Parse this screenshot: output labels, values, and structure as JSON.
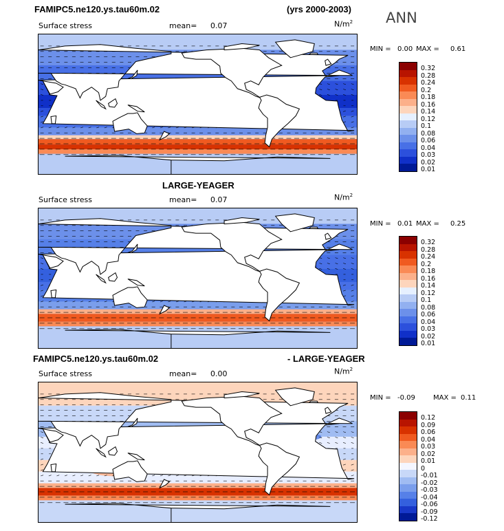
{
  "header": {
    "left_title": "FAMIPC5.ne120.ys.tau60m.02",
    "right_title": "(yrs 2000-2003)",
    "season": "ANN"
  },
  "panels": [
    {
      "id": "p1",
      "title": "",
      "variable": "Surface stress",
      "mean_label": "mean=",
      "mean_value": "0.07",
      "units": "N/m",
      "units_sup": "2",
      "min_label": "MIN =",
      "min_value": "0.00",
      "max_label": "MAX =",
      "max_value": "0.61",
      "scale": "abs"
    },
    {
      "id": "p2",
      "title": "LARGE-YEAGER",
      "variable": "Surface stress",
      "mean_label": "mean=",
      "mean_value": "0.07",
      "units": "N/m",
      "units_sup": "2",
      "min_label": "MIN =",
      "min_value": "0.01",
      "max_label": "MAX =",
      "max_value": "0.25",
      "scale": "abs"
    },
    {
      "id": "p3",
      "title_left": "FAMIPC5.ne120.ys.tau60m.02",
      "title_right": "- LARGE-YEAGER",
      "variable": "Surface stress",
      "mean_label": "mean=",
      "mean_value": "0.00",
      "units": "N/m",
      "units_sup": "2",
      "min_label": "MIN =",
      "min_value": "-0.09",
      "max_label": "MAX =",
      "max_value": "0.11",
      "scale": "diff"
    }
  ],
  "chart_data": [
    {
      "type": "heatmap",
      "title": "FAMIPC5.ne120.ys.tau60m.02",
      "subtitle": "Surface stress",
      "units": "N/m2",
      "mean": 0.07,
      "min": 0.0,
      "max": 0.61,
      "colorbar_levels": [
        "0.32",
        "0.28",
        "0.24",
        "0.2",
        "0.18",
        "0.16",
        "0.14",
        "0.12",
        "0.1",
        "0.08",
        "0.06",
        "0.04",
        "0.03",
        "0.02",
        "0.01"
      ],
      "colorbar_colors": [
        "#8b0000",
        "#b81400",
        "#d83200",
        "#f05a20",
        "#fa8a55",
        "#fcb08a",
        "#fdd5bc",
        "#e6f0ff",
        "#b8ccf5",
        "#92b0f0",
        "#6c90ea",
        "#4870e6",
        "#2c50dc",
        "#1030c8",
        "#001a96"
      ]
    },
    {
      "type": "heatmap",
      "title": "LARGE-YEAGER",
      "subtitle": "Surface stress",
      "units": "N/m2",
      "mean": 0.07,
      "min": 0.01,
      "max": 0.25,
      "colorbar_levels": [
        "0.32",
        "0.28",
        "0.24",
        "0.2",
        "0.18",
        "0.16",
        "0.14",
        "0.12",
        "0.1",
        "0.08",
        "0.06",
        "0.04",
        "0.03",
        "0.02",
        "0.01"
      ],
      "colorbar_colors": [
        "#8b0000",
        "#b81400",
        "#d83200",
        "#f05a20",
        "#fa8a55",
        "#fcb08a",
        "#fdd5bc",
        "#e6f0ff",
        "#b8ccf5",
        "#92b0f0",
        "#6c90ea",
        "#4870e6",
        "#2c50dc",
        "#1030c8",
        "#001a96"
      ]
    },
    {
      "type": "heatmap",
      "title": "FAMIPC5.ne120.ys.tau60m.02 - LARGE-YEAGER",
      "subtitle": "Surface stress",
      "units": "N/m2",
      "mean": 0.0,
      "min": -0.09,
      "max": 0.11,
      "colorbar_levels": [
        "0.12",
        "0.09",
        "0.06",
        "0.04",
        "0.03",
        "0.02",
        "0.01",
        "0",
        "-0.01",
        "-0.02",
        "-0.03",
        "-0.04",
        "-0.06",
        "-0.09",
        "-0.12"
      ],
      "colorbar_colors": [
        "#8b0000",
        "#b81400",
        "#d83200",
        "#f05a20",
        "#fa8a55",
        "#fcb08a",
        "#fdd5bc",
        "#f4f6ff",
        "#c8d8f8",
        "#a0bcf2",
        "#7a9eec",
        "#5680e8",
        "#3460de",
        "#1838c8",
        "#001a96"
      ]
    }
  ]
}
